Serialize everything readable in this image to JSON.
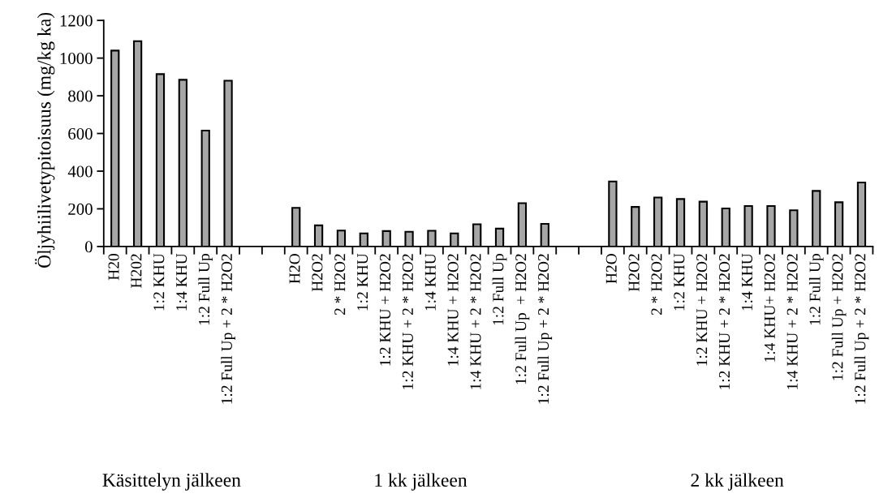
{
  "chart_data": {
    "type": "bar",
    "ylabel": "Öljyhiilivetypitoisuus (mg/kg ka)",
    "categories": [
      "H20",
      "H202",
      "1:2 KHU",
      "1:4 KHU",
      "1:2 Full Up",
      "1:2 Full Up + 2 * H2O2",
      null,
      null,
      "H2O",
      "H2O2",
      "2 * H2O2",
      "1:2 KHU",
      "1:2 KHU + H2O2",
      "1:2 KHU + 2 * H2O2",
      "1:4 KHU",
      "1:4 KHU + H2O2",
      "1:4 KHU + 2 * H2O2",
      "1:2 Full Up",
      "1:2 Full Up  + H2O2",
      "1:2 Full Up + 2 * H2O2",
      null,
      null,
      "H2O",
      "H2O2",
      "2 * H2O2",
      "1:2 KHU",
      "1:2 KHU + H2O2",
      "1:2 KHU + 2 * H2O2",
      "1:4 KHU",
      "1:4 KHU+ H2O2",
      "1:4 KHU + 2 * H2O2",
      "1:2 Full Up",
      "1:2 Full Up + H2O2",
      "1:2 Full Up + 2 * H2O2"
    ],
    "values": [
      1040,
      1090,
      915,
      885,
      615,
      880,
      null,
      null,
      205,
      112,
      85,
      70,
      82,
      78,
      84,
      70,
      118,
      95,
      230,
      120,
      null,
      null,
      345,
      210,
      260,
      252,
      238,
      202,
      215,
      215,
      192,
      295,
      235,
      340
    ],
    "color": "#a6a6a6",
    "ylim": [
      0,
      1200
    ],
    "yticks": [
      0,
      200,
      400,
      600,
      800,
      1000,
      1200
    ],
    "annotations": [
      "Käsittelyn jälkeen",
      "1 kk jälkeen",
      "2 kk jälkeen"
    ]
  }
}
